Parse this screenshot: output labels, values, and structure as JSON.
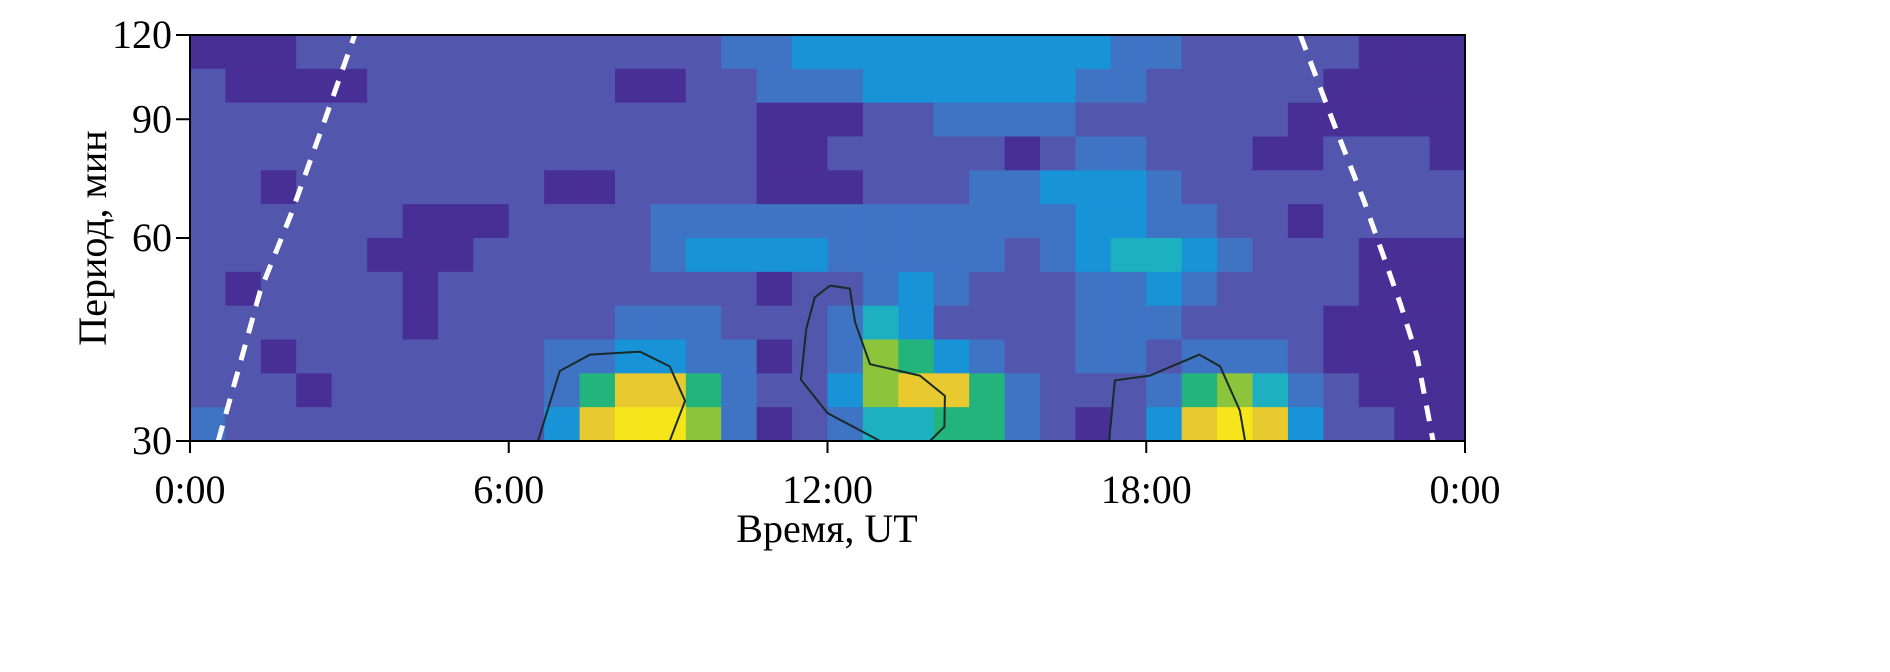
{
  "chart_data": {
    "type": "heatmap",
    "title": "",
    "xlabel": "Время, UT",
    "ylabel": "Период, мин",
    "xlim": [
      0,
      24
    ],
    "ylim": [
      30,
      120
    ],
    "y_scale": "log",
    "grid": false,
    "x_ticks": [
      0,
      6,
      12,
      18,
      24
    ],
    "x_tick_labels": [
      "0:00",
      "6:00",
      "12:00",
      "18:00",
      "0:00"
    ],
    "y_ticks": [
      30,
      60,
      90,
      120
    ],
    "y_tick_labels": [
      "30",
      "60",
      "90",
      "120"
    ],
    "colormap": [
      "#3b2a8a",
      "#482f96",
      "#5257ad",
      "#3f73c4",
      "#1893d8",
      "#1cb0c0",
      "#22b47a",
      "#8cc43c",
      "#e8c930",
      "#f7e51c"
    ],
    "value_range": [
      0,
      9
    ],
    "matrix_rows_top_to_bottom": [
      [
        1,
        1,
        1,
        2,
        2,
        2,
        2,
        2,
        2,
        2,
        2,
        2,
        2,
        2,
        2,
        3,
        3,
        4,
        4,
        4,
        4,
        4,
        4,
        4,
        4,
        4,
        3,
        3,
        2,
        2,
        2,
        2,
        2,
        1,
        1,
        1
      ],
      [
        2,
        1,
        1,
        1,
        1,
        2,
        2,
        2,
        2,
        2,
        2,
        2,
        1,
        1,
        2,
        2,
        3,
        3,
        3,
        4,
        4,
        4,
        4,
        4,
        4,
        3,
        3,
        2,
        2,
        2,
        2,
        2,
        1,
        1,
        1,
        1
      ],
      [
        2,
        2,
        2,
        2,
        2,
        2,
        2,
        2,
        2,
        2,
        2,
        2,
        2,
        2,
        2,
        2,
        1,
        1,
        1,
        2,
        2,
        3,
        3,
        3,
        3,
        2,
        2,
        2,
        2,
        2,
        2,
        1,
        1,
        1,
        1,
        1
      ],
      [
        2,
        2,
        2,
        2,
        2,
        2,
        2,
        2,
        2,
        2,
        2,
        2,
        2,
        2,
        2,
        2,
        1,
        1,
        2,
        2,
        2,
        2,
        2,
        1,
        2,
        3,
        3,
        2,
        2,
        2,
        1,
        1,
        2,
        2,
        2,
        1
      ],
      [
        2,
        2,
        1,
        2,
        2,
        2,
        2,
        2,
        2,
        2,
        1,
        1,
        2,
        2,
        2,
        2,
        1,
        1,
        1,
        2,
        2,
        2,
        3,
        3,
        4,
        4,
        4,
        3,
        2,
        2,
        2,
        2,
        2,
        2,
        2,
        2
      ],
      [
        2,
        2,
        2,
        2,
        2,
        2,
        1,
        1,
        1,
        2,
        2,
        2,
        2,
        3,
        3,
        3,
        3,
        3,
        3,
        3,
        3,
        3,
        3,
        3,
        3,
        4,
        4,
        3,
        3,
        2,
        2,
        1,
        2,
        2,
        2,
        2
      ],
      [
        2,
        2,
        2,
        2,
        2,
        1,
        1,
        1,
        2,
        2,
        2,
        2,
        2,
        3,
        4,
        4,
        4,
        4,
        3,
        3,
        3,
        3,
        3,
        2,
        3,
        4,
        5,
        5,
        4,
        3,
        2,
        2,
        2,
        1,
        1,
        1
      ],
      [
        2,
        1,
        2,
        2,
        2,
        2,
        1,
        2,
        2,
        2,
        2,
        2,
        2,
        2,
        2,
        2,
        1,
        2,
        2,
        3,
        4,
        3,
        2,
        2,
        2,
        3,
        3,
        4,
        3,
        2,
        2,
        2,
        2,
        1,
        1,
        1
      ],
      [
        2,
        2,
        2,
        2,
        2,
        2,
        1,
        2,
        2,
        2,
        2,
        2,
        3,
        3,
        3,
        2,
        2,
        2,
        3,
        5,
        4,
        2,
        2,
        2,
        2,
        3,
        3,
        3,
        2,
        2,
        2,
        2,
        1,
        1,
        1,
        1
      ],
      [
        2,
        2,
        1,
        2,
        2,
        2,
        2,
        2,
        2,
        2,
        3,
        3,
        4,
        4,
        3,
        3,
        1,
        2,
        3,
        7,
        6,
        4,
        3,
        2,
        2,
        3,
        3,
        2,
        3,
        3,
        3,
        2,
        1,
        1,
        1,
        1
      ],
      [
        2,
        2,
        2,
        1,
        2,
        2,
        2,
        2,
        2,
        2,
        3,
        6,
        8,
        8,
        6,
        3,
        2,
        2,
        4,
        7,
        8,
        8,
        6,
        3,
        2,
        2,
        2,
        3,
        6,
        7,
        5,
        3,
        2,
        1,
        1,
        1
      ],
      [
        3,
        2,
        2,
        2,
        2,
        2,
        2,
        2,
        2,
        2,
        4,
        8,
        9,
        9,
        7,
        3,
        1,
        2,
        3,
        5,
        5,
        6,
        6,
        3,
        2,
        1,
        2,
        4,
        8,
        9,
        8,
        4,
        2,
        2,
        1,
        1
      ]
    ],
    "contours": [
      [
        [
          6.55,
          30
        ],
        [
          6.96,
          38.1
        ],
        [
          7.53,
          40.3
        ],
        [
          8.47,
          40.7
        ],
        [
          9.03,
          38.7
        ],
        [
          9.32,
          34.4
        ],
        [
          9.03,
          30
        ]
      ],
      [
        [
          12.99,
          30
        ],
        [
          12.0,
          33
        ],
        [
          11.5,
          37
        ],
        [
          11.6,
          44
        ],
        [
          11.76,
          49
        ],
        [
          12.05,
          51
        ],
        [
          12.42,
          50.5
        ],
        [
          12.52,
          45
        ],
        [
          12.8,
          39
        ],
        [
          13.74,
          37.5
        ],
        [
          14.21,
          35
        ],
        [
          14.2,
          31.5
        ],
        [
          13.93,
          30
        ]
      ],
      [
        [
          17.3,
          30
        ],
        [
          17.41,
          36.9
        ],
        [
          18.07,
          37.5
        ],
        [
          19.0,
          40.3
        ],
        [
          19.39,
          38.7
        ],
        [
          19.76,
          33.3
        ],
        [
          19.86,
          30
        ]
      ]
    ],
    "cone_of_influence": [
      [
        [
          0.53,
          30
        ],
        [
          0.9,
          38
        ],
        [
          1.32,
          50
        ],
        [
          1.9,
          65
        ],
        [
          2.5,
          88
        ],
        [
          3.1,
          120
        ]
      ],
      [
        [
          20.9,
          120
        ],
        [
          21.5,
          90
        ],
        [
          22.1,
          68
        ],
        [
          22.78,
          48
        ],
        [
          23.1,
          40
        ],
        [
          23.4,
          30
        ]
      ]
    ],
    "contour_color": "#1a2a2a",
    "coi_color": "#ffffff"
  }
}
